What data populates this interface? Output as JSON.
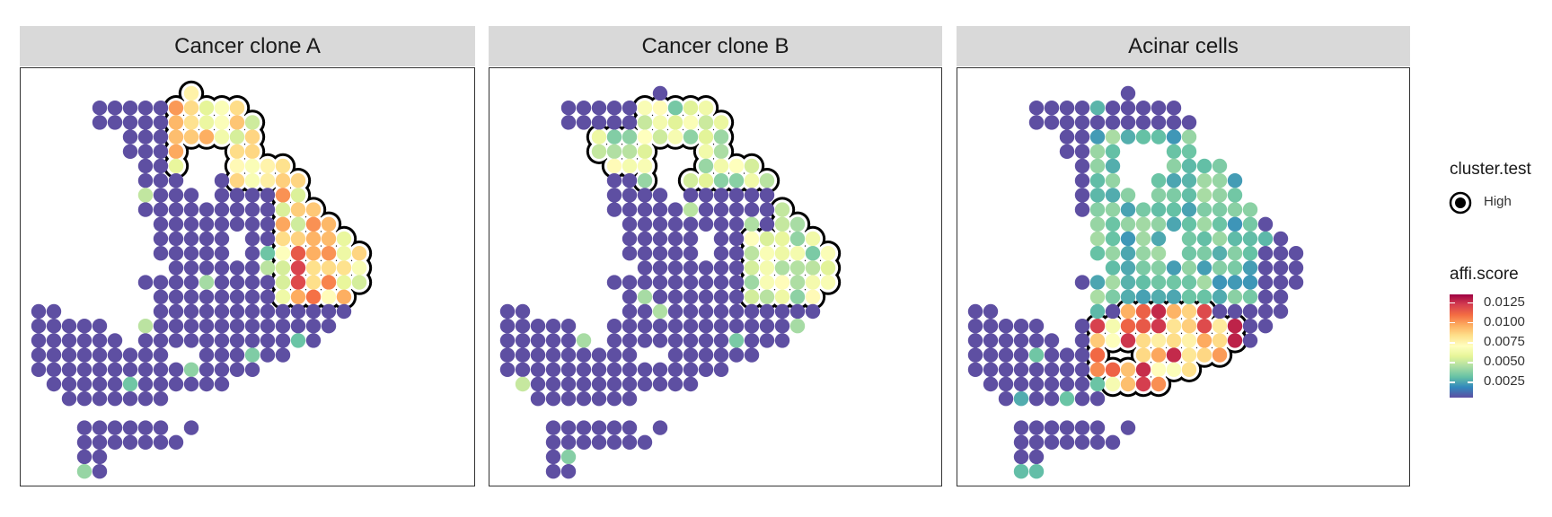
{
  "chart_data": {
    "type": "scatter",
    "panels": [
      {
        "title": "Cancer clone A",
        "highlight": "A"
      },
      {
        "title": "Cancer clone B",
        "highlight": "B"
      },
      {
        "title": "Acinar cells",
        "highlight": "C"
      }
    ],
    "legend": {
      "shape_title": "cluster.test",
      "shape_label": "High",
      "color_title": "affi.score",
      "color_ticks": [
        "0.0125",
        "0.0100",
        "0.0075",
        "0.0050",
        "0.0025"
      ],
      "color_values": [
        0.0125,
        0.01,
        0.0075,
        0.005,
        0.0025
      ],
      "color_range": [
        0.0005,
        0.0135
      ],
      "palette": [
        "#5e4fa2",
        "#3288bd",
        "#66c2a5",
        "#abdda4",
        "#e6f598",
        "#ffffbf",
        "#fee08b",
        "#fdae61",
        "#f46d43",
        "#d53e4f",
        "#9e0142"
      ]
    },
    "grid": false,
    "legend_position": "right"
  }
}
